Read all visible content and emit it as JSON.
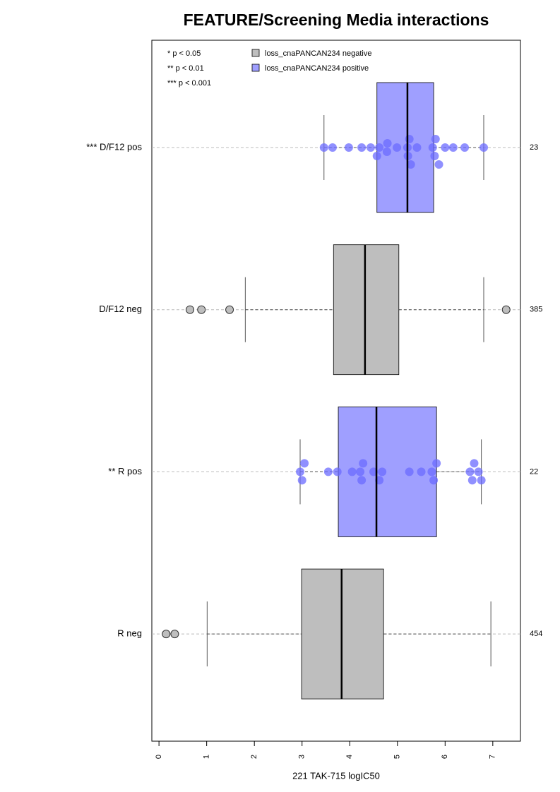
{
  "chart_data": {
    "type": "box",
    "title": "FEATURE/Screening Media interactions",
    "x_label": "221 TAK-715 logIC50",
    "xlim": [
      -0.15,
      7.58
    ],
    "xticks": [
      0,
      1,
      2,
      3,
      4,
      5,
      6,
      7
    ],
    "significance_legend": [
      "* p < 0.05",
      "** p < 0.01",
      "*** p < 0.001"
    ],
    "legend": [
      {
        "name": "loss_cnaPANCAN234 negative",
        "color": "#bebebe"
      },
      {
        "name": "loss_cnaPANCAN234 positive",
        "color": "#9f9fff"
      }
    ],
    "boxes": [
      {
        "name": "*** D/F12 pos",
        "n": "23",
        "color": "#9f9fff",
        "point_color": "#6b6bff",
        "whisker_low": 3.46,
        "q1": 4.57,
        "median": 5.21,
        "q3": 5.76,
        "whisker_high": 6.81,
        "outliers": [],
        "points": [
          3.46,
          3.64,
          3.98,
          4.25,
          4.44,
          4.57,
          4.62,
          4.78,
          4.79,
          4.99,
          5.21,
          5.22,
          5.25,
          5.28,
          5.41,
          5.74,
          5.78,
          5.8,
          5.87,
          6.0,
          6.17,
          6.41,
          6.81
        ]
      },
      {
        "name": "D/F12 neg",
        "n": "385",
        "color": "#bebebe",
        "point_color": "#b0b0b0",
        "whisker_low": 1.81,
        "q1": 3.66,
        "median": 4.32,
        "q3": 5.03,
        "whisker_high": 6.81,
        "outliers": [
          0.65,
          0.89,
          1.48,
          7.28
        ],
        "points": []
      },
      {
        "name": "** R pos",
        "n": "22",
        "color": "#9f9fff",
        "point_color": "#6b6bff",
        "whisker_low": 2.96,
        "q1": 3.76,
        "median": 4.56,
        "q3": 5.82,
        "whisker_high": 6.76,
        "outliers": [],
        "points": [
          2.96,
          3.0,
          3.05,
          3.55,
          3.74,
          4.05,
          4.22,
          4.25,
          4.28,
          4.5,
          4.62,
          4.68,
          5.25,
          5.5,
          5.72,
          5.76,
          5.82,
          6.52,
          6.57,
          6.61,
          6.7,
          6.76
        ]
      },
      {
        "name": "R neg",
        "n": "454",
        "color": "#bebebe",
        "point_color": "#b0b0b0",
        "whisker_low": 1.01,
        "q1": 2.99,
        "median": 3.83,
        "q3": 4.71,
        "whisker_high": 6.96,
        "outliers": [
          0.15,
          0.33
        ],
        "points": []
      }
    ]
  }
}
